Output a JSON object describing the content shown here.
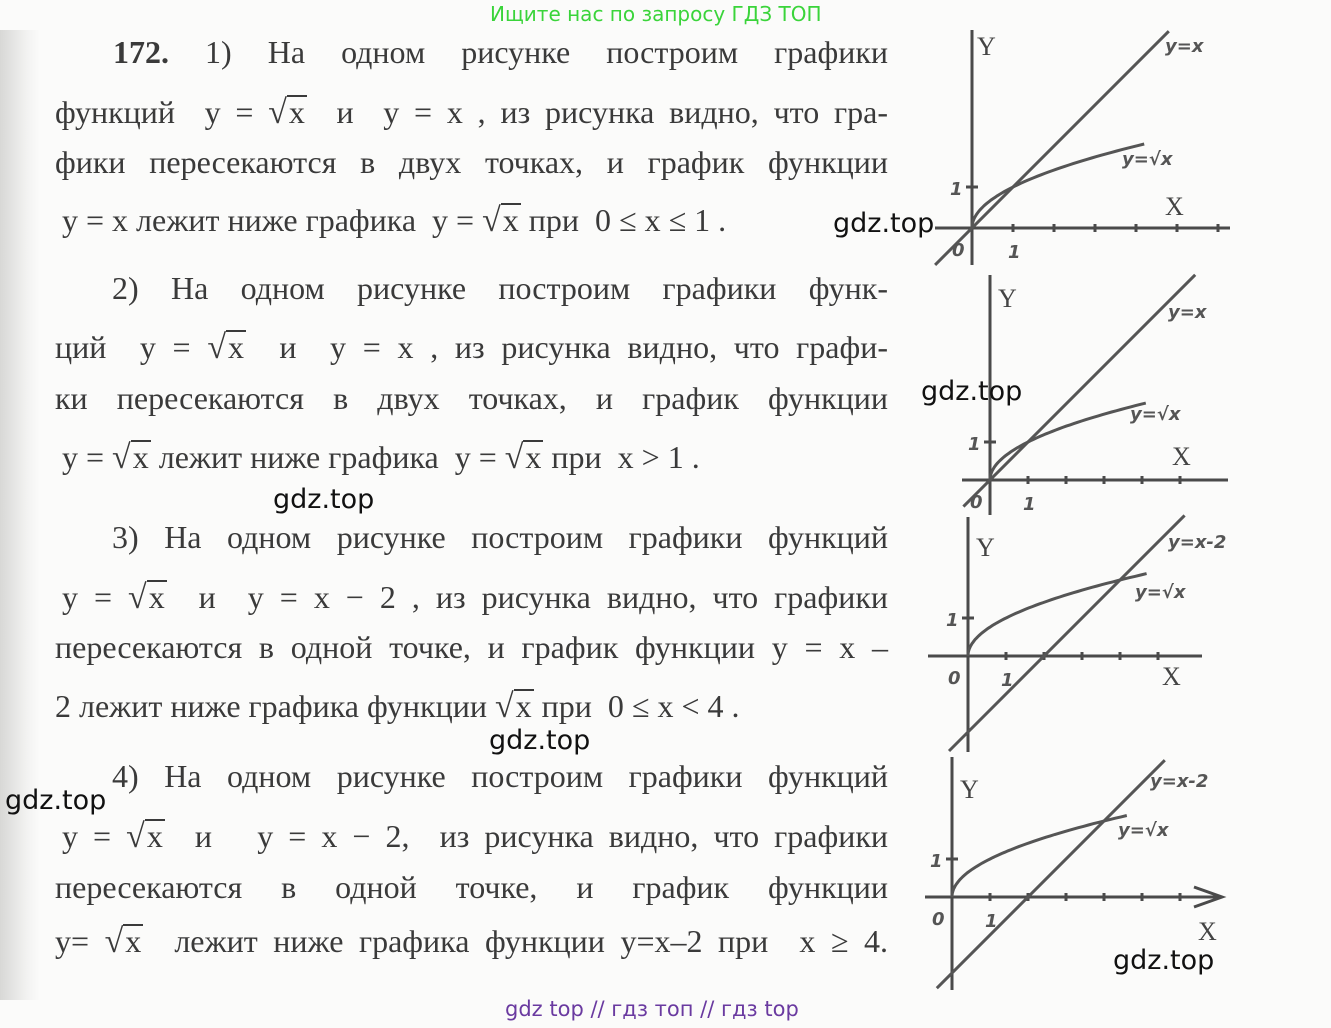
{
  "header_watermark": "Ищите нас по запросу ГДЗ ТОП",
  "footer_watermark": "gdz top  //  гдз топ  //  гдз top",
  "watermarks": [
    "gdz.top",
    "gdz.top",
    "gdz.top",
    "gdz.top",
    "gdz.top",
    "gdz.top"
  ],
  "problem_number": "172.",
  "lines": [
    [
      {
        "t": " 1) На одном рисунке построим графики"
      }
    ],
    [
      {
        "t": "функций  y = "
      },
      {
        "s": "x"
      },
      {
        "t": "  и  y = x , из рисунка видно, что гра-"
      }
    ],
    [
      {
        "t": "фики пересекаются в двух точках, и график функции"
      }
    ],
    [
      {
        "t": "y = x лежит ниже графика  y = "
      },
      {
        "s": "x"
      },
      {
        "t": " при  0 ≤ x ≤ 1 ."
      }
    ],
    [
      {
        "t": "2) На одном рисунке построим графики функ-"
      }
    ],
    [
      {
        "t": "ций  y = "
      },
      {
        "s": "x"
      },
      {
        "t": "  и  y = x , из рисунка видно, что графи-"
      }
    ],
    [
      {
        "t": "ки пересекаются в двух точках, и график функции"
      }
    ],
    [
      {
        "t": "y = "
      },
      {
        "s": "x"
      },
      {
        "t": " лежит ниже графика  y = "
      },
      {
        "s": "x"
      },
      {
        "t": " при  x > 1 ."
      }
    ],
    [
      {
        "t": "3) На одном рисунке построим графики функций"
      }
    ],
    [
      {
        "t": "y = "
      },
      {
        "s": "x"
      },
      {
        "t": "  и  y = x − 2 , из рисунка видно, что графики"
      }
    ],
    [
      {
        "t": "пересекаются в одной точке, и график функции y = x –"
      }
    ],
    [
      {
        "t": "2 лежит ниже графика функции "
      },
      {
        "s": "x"
      },
      {
        "t": " при  0 ≤ x < 4 ."
      }
    ],
    [
      {
        "t": "4) На одном рисунке построим графики функций"
      }
    ],
    [
      {
        "t": "y = "
      },
      {
        "s": "x"
      },
      {
        "t": "  и   y = x − 2,  из рисунка видно, что графики"
      }
    ],
    [
      {
        "t": "пересекаются  в  одной  точке,  и  график  функции"
      }
    ],
    [
      {
        "t": "y= "
      },
      {
        "s": "x"
      },
      {
        "t": "  лежит ниже графика функции y=x–2 при  x ≥ 4."
      }
    ]
  ],
  "graphs": [
    {
      "y_axis": "Y",
      "x_axis": "X",
      "origin": "0",
      "tick": "1",
      "tick_y": "1",
      "curves": [
        "y=x",
        "y=√x"
      ]
    },
    {
      "y_axis": "Y",
      "x_axis": "X",
      "origin": "0",
      "tick": "1",
      "tick_y": "1",
      "curves": [
        "y=x",
        "y=√x"
      ]
    },
    {
      "y_axis": "Y",
      "x_axis": "X",
      "origin": "0",
      "tick": "1",
      "tick_y": "1",
      "curves": [
        "y=x-2",
        "y=√x"
      ]
    },
    {
      "y_axis": "Y",
      "x_axis": "X",
      "origin": "0",
      "tick": "1",
      "tick_y": "1",
      "curves": [
        "y=x-2",
        "y=√x"
      ]
    }
  ]
}
